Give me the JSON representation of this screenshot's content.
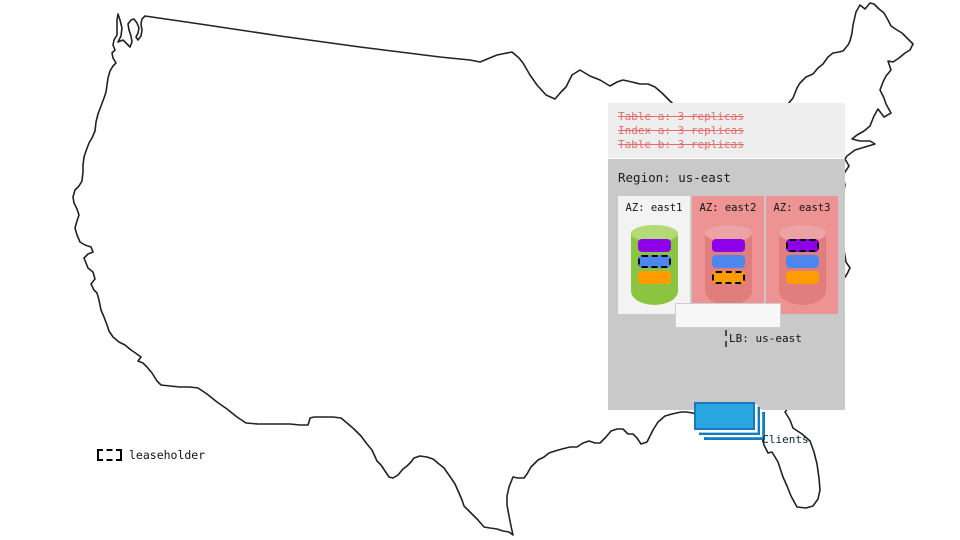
{
  "overlay": {
    "crossed_out_lines": [
      "Table a: 3 replicas",
      "Index a: 3 replicas",
      "Table b: 3 replicas"
    ],
    "region_label": "Region: us-east",
    "azs": [
      {
        "label": "AZ: east1",
        "cylinder": "green",
        "replicas": [
          {
            "color": "purple",
            "leaseholder": false
          },
          {
            "color": "blue",
            "leaseholder": true
          },
          {
            "color": "orange",
            "leaseholder": false
          }
        ]
      },
      {
        "label": "AZ: east2",
        "cylinder": "red",
        "replicas": [
          {
            "color": "purple",
            "leaseholder": false
          },
          {
            "color": "blue",
            "leaseholder": false
          },
          {
            "color": "orange",
            "leaseholder": true
          }
        ]
      },
      {
        "label": "AZ: east3",
        "cylinder": "red",
        "replicas": [
          {
            "color": "purple",
            "leaseholder": true
          },
          {
            "color": "blue",
            "leaseholder": false
          },
          {
            "color": "orange",
            "leaseholder": false
          }
        ]
      }
    ],
    "lb_label": "LB: us-east",
    "clients_label": "Clients"
  },
  "legend": {
    "label": "leaseholder"
  },
  "colors": {
    "strike_text": "#e06c6c",
    "panel_strip": "#eeeeee",
    "panel": "#c9c9c9",
    "az_up_bg": "#f3f3f3",
    "az_down_bg": "#ee9393",
    "cyl_green_body": "#8bc441",
    "cyl_green_top": "#b4d977",
    "cyl_red_body": "#e07e7e",
    "cyl_red_top": "#eca3a3",
    "replica_purple": "#8e00ea",
    "replica_blue": "#4d87ee",
    "replica_orange": "#ff9d00",
    "lb_bg": "#f7f7f7",
    "lb_border": "#cfcfcf",
    "clients_fill": "#29a7e0",
    "clients_border": "#1a79b8",
    "map_outline": "#222222"
  }
}
